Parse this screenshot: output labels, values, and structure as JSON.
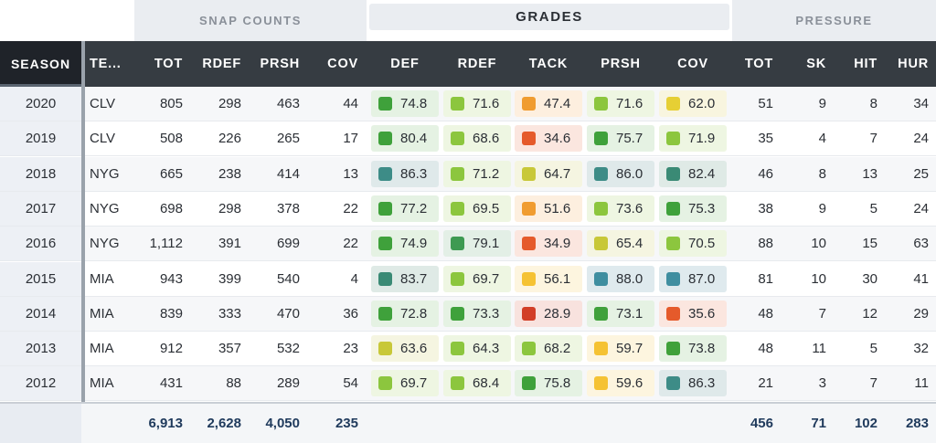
{
  "groups": {
    "snap": "SNAP COUNTS",
    "grades": "GRADES",
    "pressure": "PRESSURE"
  },
  "headers": {
    "season": "SEASON",
    "team": "TE...",
    "snap_tot": "TOT",
    "snap_rdef": "RDEF",
    "snap_prsh": "PRSH",
    "snap_cov": "COV",
    "g_def": "DEF",
    "g_rdef": "RDEF",
    "g_tack": "TACK",
    "g_prsh": "PRSH",
    "g_cov": "COV",
    "p_tot": "TOT",
    "p_sk": "SK",
    "p_hit": "HIT",
    "p_hur": "HUR"
  },
  "grade_colors": {
    "elite": "#3a8a86",
    "high": "#41a33d",
    "good": "#8fc63c",
    "avg": "#c6c734",
    "below": "#f3c231",
    "low": "#ee9a2c",
    "poor": "#e35b2b",
    "bad": "#d33e28"
  },
  "rows": [
    {
      "season": "2020",
      "team": "CLV",
      "tot": "805",
      "rdef": "298",
      "prsh": "463",
      "cov": "44",
      "grades": [
        {
          "v": "74.8",
          "c": "high"
        },
        {
          "v": "71.6",
          "c": "good"
        },
        {
          "v": "47.4",
          "c": "low"
        },
        {
          "v": "71.6",
          "c": "good"
        },
        {
          "v": "62.0",
          "c": "below2"
        }
      ],
      "p_tot": "51",
      "sk": "9",
      "hit": "8",
      "hur": "34"
    },
    {
      "season": "2019",
      "team": "CLV",
      "tot": "508",
      "rdef": "226",
      "prsh": "265",
      "cov": "17",
      "grades": [
        {
          "v": "80.4",
          "c": "high"
        },
        {
          "v": "68.6",
          "c": "good"
        },
        {
          "v": "34.6",
          "c": "poor"
        },
        {
          "v": "75.7",
          "c": "high"
        },
        {
          "v": "71.9",
          "c": "good"
        }
      ],
      "p_tot": "35",
      "sk": "4",
      "hit": "7",
      "hur": "24"
    },
    {
      "season": "2018",
      "team": "NYG",
      "tot": "665",
      "rdef": "238",
      "prsh": "414",
      "cov": "13",
      "grades": [
        {
          "v": "86.3",
          "c": "elite"
        },
        {
          "v": "71.2",
          "c": "good"
        },
        {
          "v": "64.7",
          "c": "avg"
        },
        {
          "v": "86.0",
          "c": "elite"
        },
        {
          "v": "82.4",
          "c": "elite2"
        }
      ],
      "p_tot": "46",
      "sk": "8",
      "hit": "13",
      "hur": "25"
    },
    {
      "season": "2017",
      "team": "NYG",
      "tot": "698",
      "rdef": "298",
      "prsh": "378",
      "cov": "22",
      "grades": [
        {
          "v": "77.2",
          "c": "high"
        },
        {
          "v": "69.5",
          "c": "good"
        },
        {
          "v": "51.6",
          "c": "low"
        },
        {
          "v": "73.6",
          "c": "good"
        },
        {
          "v": "75.3",
          "c": "high"
        }
      ],
      "p_tot": "38",
      "sk": "9",
      "hit": "5",
      "hur": "24"
    },
    {
      "season": "2016",
      "team": "NYG",
      "tot": "1,112",
      "rdef": "391",
      "prsh": "699",
      "cov": "22",
      "grades": [
        {
          "v": "74.9",
          "c": "high"
        },
        {
          "v": "79.1",
          "c": "high2"
        },
        {
          "v": "34.9",
          "c": "poor"
        },
        {
          "v": "65.4",
          "c": "avg"
        },
        {
          "v": "70.5",
          "c": "good"
        }
      ],
      "p_tot": "88",
      "sk": "10",
      "hit": "15",
      "hur": "63"
    },
    {
      "season": "2015",
      "team": "MIA",
      "tot": "943",
      "rdef": "399",
      "prsh": "540",
      "cov": "4",
      "grades": [
        {
          "v": "83.7",
          "c": "elite2"
        },
        {
          "v": "69.7",
          "c": "good"
        },
        {
          "v": "56.1",
          "c": "below"
        },
        {
          "v": "88.0",
          "c": "elite3"
        },
        {
          "v": "87.0",
          "c": "elite3"
        }
      ],
      "p_tot": "81",
      "sk": "10",
      "hit": "30",
      "hur": "41"
    },
    {
      "season": "2014",
      "team": "MIA",
      "tot": "839",
      "rdef": "333",
      "prsh": "470",
      "cov": "36",
      "grades": [
        {
          "v": "72.8",
          "c": "high"
        },
        {
          "v": "73.3",
          "c": "high"
        },
        {
          "v": "28.9",
          "c": "bad"
        },
        {
          "v": "73.1",
          "c": "high"
        },
        {
          "v": "35.6",
          "c": "poor"
        }
      ],
      "p_tot": "48",
      "sk": "7",
      "hit": "12",
      "hur": "29"
    },
    {
      "season": "2013",
      "team": "MIA",
      "tot": "912",
      "rdef": "357",
      "prsh": "532",
      "cov": "23",
      "grades": [
        {
          "v": "63.6",
          "c": "avg"
        },
        {
          "v": "64.3",
          "c": "good"
        },
        {
          "v": "68.2",
          "c": "good"
        },
        {
          "v": "59.7",
          "c": "below"
        },
        {
          "v": "73.8",
          "c": "high"
        }
      ],
      "p_tot": "48",
      "sk": "11",
      "hit": "5",
      "hur": "32"
    },
    {
      "season": "2012",
      "team": "MIA",
      "tot": "431",
      "rdef": "88",
      "prsh": "289",
      "cov": "54",
      "grades": [
        {
          "v": "69.7",
          "c": "good"
        },
        {
          "v": "68.4",
          "c": "good"
        },
        {
          "v": "75.8",
          "c": "high"
        },
        {
          "v": "59.6",
          "c": "below"
        },
        {
          "v": "86.3",
          "c": "elite"
        }
      ],
      "p_tot": "21",
      "sk": "3",
      "hit": "7",
      "hur": "11"
    }
  ],
  "totals": {
    "tot": "6,913",
    "rdef": "2,628",
    "prsh": "4,050",
    "cov": "235",
    "p_tot": "456",
    "sk": "71",
    "hit": "102",
    "hur": "283"
  }
}
